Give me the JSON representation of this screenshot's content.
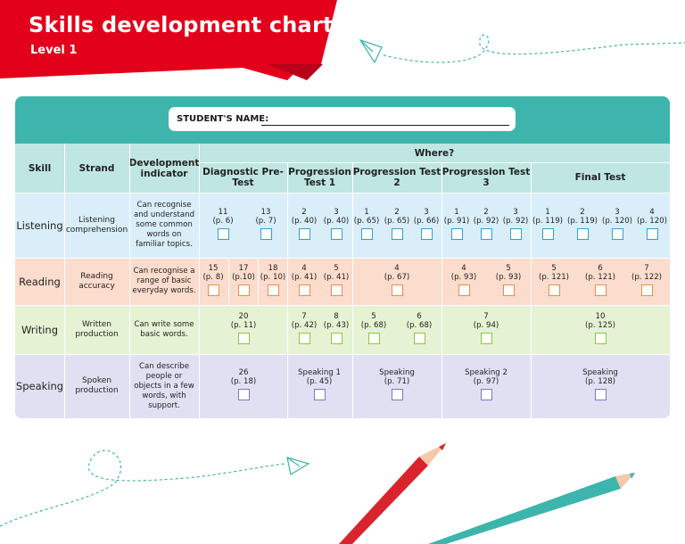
{
  "header": {
    "title": "Skills development chart",
    "level": "Level 1"
  },
  "colors": {
    "red": "#e3001b",
    "teal": "#3db5ac",
    "listening": "#d9eef9",
    "reading": "#fcdccc",
    "writing": "#e6f2d4",
    "speaking": "#e1e0f3"
  },
  "form": {
    "student_name_label": "STUDENT'S NAME:"
  },
  "table": {
    "header": {
      "skill": "Skill",
      "strand": "Strand",
      "development": "Development indicator",
      "where": "Where?",
      "tests": [
        "Diagnostic Pre-Test",
        "Progression Test 1",
        "Progression Test 2",
        "Progression Test 3",
        "Final Test"
      ]
    },
    "rows": [
      {
        "skill": "Listening",
        "strand": "Listening comprehension",
        "indicator": "Can recognise and understand some common words on familiar topics.",
        "items": [
          {
            "num": "11",
            "page": "(p. 6)"
          },
          {
            "num": "13",
            "page": "(p. 7)"
          },
          {
            "num": "2",
            "page": "(p. 40)"
          },
          {
            "num": "3",
            "page": "(p. 40)"
          },
          {
            "num": "1",
            "page": "(p. 65)"
          },
          {
            "num": "2",
            "page": "(p. 65)"
          },
          {
            "num": "3",
            "page": "(p. 66)"
          },
          {
            "num": "1",
            "page": "(p. 91)"
          },
          {
            "num": "2",
            "page": "(p. 92)"
          },
          {
            "num": "3",
            "page": "(p. 92)"
          },
          {
            "num": "1",
            "page": "(p. 119)"
          },
          {
            "num": "2",
            "page": "(p. 119)"
          },
          {
            "num": "3",
            "page": "(p. 120)"
          },
          {
            "num": "4",
            "page": "(p. 120)"
          }
        ]
      },
      {
        "skill": "Reading",
        "strand": "Reading accuracy",
        "indicator": "Can recognise a range of basic everyday words.",
        "items": [
          {
            "num": "15",
            "page": "(p. 8)"
          },
          {
            "num": "17",
            "page": "(p.10)"
          },
          {
            "num": "18",
            "page": "(p. 10)"
          },
          {
            "num": "4",
            "page": "(p. 41)"
          },
          {
            "num": "5",
            "page": "(p. 41)"
          },
          {
            "num": "4",
            "page": "(p. 67)"
          },
          {
            "num": "4",
            "page": "(p. 93)"
          },
          {
            "num": "5",
            "page": "(p. 93)"
          },
          {
            "num": "5",
            "page": "(p. 121)"
          },
          {
            "num": "6",
            "page": "(p. 121)"
          },
          {
            "num": "7",
            "page": "(p. 122)"
          }
        ]
      },
      {
        "skill": "Writing",
        "strand": "Written production",
        "indicator": "Can write some basic words.",
        "items": [
          {
            "num": "20",
            "page": "(p. 11)"
          },
          {
            "num": "7",
            "page": "(p. 42)"
          },
          {
            "num": "8",
            "page": "(p. 43)"
          },
          {
            "num": "5",
            "page": "(p. 68)"
          },
          {
            "num": "6",
            "page": "(p. 68)"
          },
          {
            "num": "7",
            "page": "(p. 94)"
          },
          {
            "num": "10",
            "page": "(p. 125)"
          }
        ]
      },
      {
        "skill": "Speaking",
        "strand": "Spoken production",
        "indicator": "Can describe people or objects in a few words, with support.",
        "items": [
          {
            "num": "26",
            "page": "(p. 18)"
          },
          {
            "num": "Speaking 1",
            "page": "(p. 45)"
          },
          {
            "num": "Speaking",
            "page": "(p. 71)"
          },
          {
            "num": "Speaking 2",
            "page": "(p. 97)"
          },
          {
            "num": "Speaking",
            "page": "(p. 128)"
          }
        ]
      }
    ]
  }
}
